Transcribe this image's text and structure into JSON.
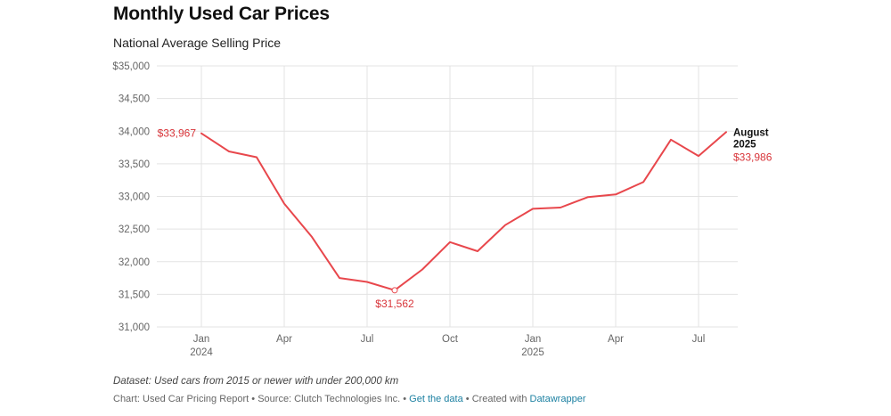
{
  "title": "Monthly Used Car Prices",
  "subtitle": "National Average Selling Price",
  "footnote": "Dataset: Used cars from 2015 or newer with under 200,000 km",
  "credits": {
    "chart": "Chart: Used Car Pricing Report",
    "separator": " • ",
    "source": "Source: Clutch Technologies Inc.",
    "data_link": "Get the data",
    "created_with": "Created with ",
    "tool": "Datawrapper"
  },
  "colors": {
    "line": "#e8474c",
    "label": "#d8353a",
    "link": "#1d81a2"
  },
  "chart_data": {
    "type": "line",
    "title": "Monthly Used Car Prices",
    "subtitle": "National Average Selling Price",
    "ylim": [
      31000,
      35000
    ],
    "y_ticks": [
      {
        "value": 35000,
        "label": "$35,000"
      },
      {
        "value": 34500,
        "label": "34,500"
      },
      {
        "value": 34000,
        "label": "34,000"
      },
      {
        "value": 33500,
        "label": "33,500"
      },
      {
        "value": 33000,
        "label": "33,000"
      },
      {
        "value": 32500,
        "label": "32,500"
      },
      {
        "value": 32000,
        "label": "32,000"
      },
      {
        "value": 31500,
        "label": "31,500"
      },
      {
        "value": 31000,
        "label": "31,000"
      }
    ],
    "x_ticks": [
      {
        "date": "2024-01",
        "label": "Jan",
        "label2": "2024"
      },
      {
        "date": "2024-04",
        "label": "Apr",
        "label2": ""
      },
      {
        "date": "2024-07",
        "label": "Jul",
        "label2": ""
      },
      {
        "date": "2024-10",
        "label": "Oct",
        "label2": ""
      },
      {
        "date": "2025-01",
        "label": "Jan",
        "label2": "2025"
      },
      {
        "date": "2025-04",
        "label": "Apr",
        "label2": ""
      },
      {
        "date": "2025-07",
        "label": "Jul",
        "label2": ""
      }
    ],
    "grid": true,
    "legend": "none",
    "series": [
      {
        "x": [
          "2024-01",
          "2024-02",
          "2024-03",
          "2024-04",
          "2024-05",
          "2024-06",
          "2024-07",
          "2024-08",
          "2024-09",
          "2024-10",
          "2024-11",
          "2024-12",
          "2025-01",
          "2025-02",
          "2025-03",
          "2025-04",
          "2025-05",
          "2025-06",
          "2025-07",
          "2025-08"
        ],
        "values": [
          33967,
          33690,
          33600,
          32890,
          32380,
          31750,
          31690,
          31562,
          31880,
          32300,
          32160,
          32560,
          32810,
          32830,
          32990,
          33030,
          33220,
          33870,
          33620,
          33986
        ]
      }
    ],
    "annotations": [
      {
        "date": "2024-01",
        "value": 33967,
        "text": "$33,967",
        "position": "left"
      },
      {
        "date": "2024-08",
        "value": 31562,
        "text": "$31,562",
        "position": "below",
        "marker": true
      },
      {
        "date": "2025-08",
        "value": 33986,
        "text": "$33,986",
        "title": "August 2025",
        "title_lines": [
          "August",
          "2025"
        ],
        "position": "right"
      }
    ]
  }
}
